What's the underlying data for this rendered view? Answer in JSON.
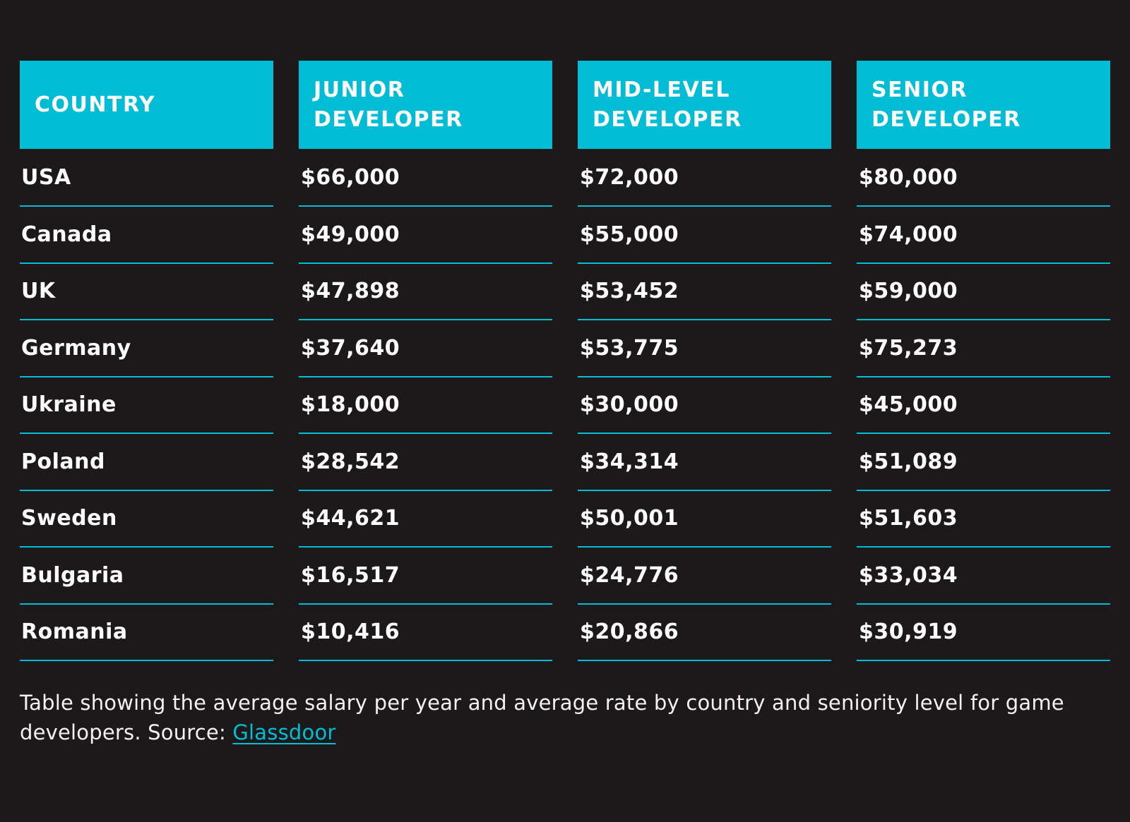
{
  "table": {
    "headers": [
      {
        "id": "country",
        "label": "COUNTRY"
      },
      {
        "id": "junior",
        "label": "JUNIOR\nDEVELOPER"
      },
      {
        "id": "mid",
        "label": "MID-LEVEL\nDEVELOPER"
      },
      {
        "id": "senior",
        "label": "SENIOR\nDEVELOPER"
      }
    ],
    "rows": [
      {
        "country": "USA",
        "junior": "$66,000",
        "mid": "$72,000",
        "senior": "$80,000"
      },
      {
        "country": "Canada",
        "junior": "$49,000",
        "mid": "$55,000",
        "senior": "$74,000"
      },
      {
        "country": "UK",
        "junior": "$47,898",
        "mid": "$53,452",
        "senior": "$59,000"
      },
      {
        "country": "Germany",
        "junior": "$37,640",
        "mid": "$53,775",
        "senior": "$75,273"
      },
      {
        "country": "Ukraine",
        "junior": "$18,000",
        "mid": "$30,000",
        "senior": "$45,000"
      },
      {
        "country": "Poland",
        "junior": "$28,542",
        "mid": "$34,314",
        "senior": "$51,089"
      },
      {
        "country": "Sweden",
        "junior": "$44,621",
        "mid": "$50,001",
        "senior": "$51,603"
      },
      {
        "country": "Bulgaria",
        "junior": "$16,517",
        "mid": "$24,776",
        "senior": "$33,034"
      },
      {
        "country": "Romania",
        "junior": "$10,416",
        "mid": "$20,866",
        "senior": "$30,919"
      }
    ]
  },
  "caption": {
    "text_before_link": "Table showing the average salary per year and average rate by country and seniority level for game developers. Source: ",
    "link_text": "Glassdoor"
  },
  "colors": {
    "accent": "#00BCD4",
    "background": "#1B1919",
    "text": "#FFFFFF",
    "caption_text": "#F2F2F2"
  },
  "chart_data": {
    "type": "table",
    "title": "Average salary per year and average rate by country and seniority level for game developers",
    "columns": [
      "COUNTRY",
      "JUNIOR DEVELOPER",
      "MID-LEVEL DEVELOPER",
      "SENIOR DEVELOPER"
    ],
    "categories": [
      "USA",
      "Canada",
      "UK",
      "Germany",
      "Ukraine",
      "Poland",
      "Sweden",
      "Bulgaria",
      "Romania"
    ],
    "series": [
      {
        "name": "Junior Developer",
        "values": [
          66000,
          49000,
          47898,
          37640,
          18000,
          28542,
          44621,
          16517,
          10416
        ]
      },
      {
        "name": "Mid-Level Developer",
        "values": [
          72000,
          55000,
          53452,
          53775,
          30000,
          34314,
          50001,
          24776,
          20866
        ]
      },
      {
        "name": "Senior Developer",
        "values": [
          80000,
          74000,
          59000,
          75273,
          45000,
          51089,
          51603,
          33034,
          30919
        ]
      }
    ],
    "unit": "USD",
    "source": "Glassdoor"
  }
}
